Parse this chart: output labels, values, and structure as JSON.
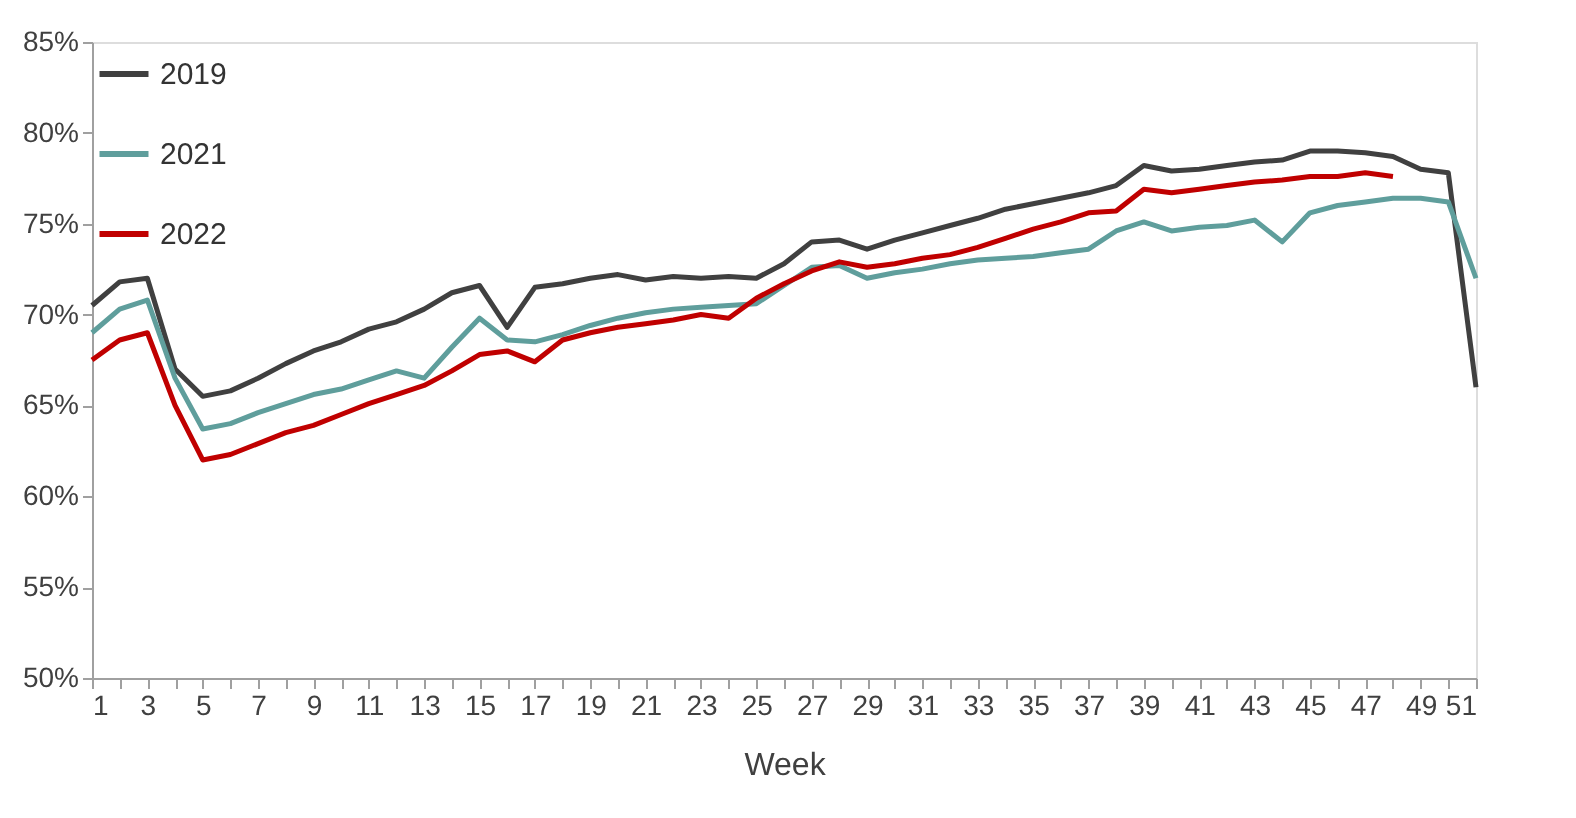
{
  "chart_data": {
    "type": "line",
    "xlabel": "Week",
    "x": [
      1,
      2,
      3,
      4,
      5,
      6,
      7,
      8,
      9,
      10,
      11,
      12,
      13,
      14,
      15,
      16,
      17,
      18,
      19,
      20,
      21,
      22,
      23,
      24,
      25,
      26,
      27,
      28,
      29,
      30,
      31,
      32,
      33,
      34,
      35,
      36,
      37,
      38,
      39,
      40,
      41,
      42,
      43,
      44,
      45,
      46,
      47,
      48,
      49,
      50,
      51
    ],
    "series": [
      {
        "name": "2019",
        "color": "#404040",
        "values": [
          70.5,
          71.8,
          72.0,
          67.0,
          65.5,
          65.8,
          66.5,
          67.3,
          68.0,
          68.5,
          69.2,
          69.6,
          70.3,
          71.2,
          71.6,
          69.3,
          71.5,
          71.7,
          72.0,
          72.2,
          71.9,
          72.1,
          72.0,
          72.1,
          72.0,
          72.8,
          74.0,
          74.1,
          73.6,
          74.1,
          74.5,
          74.9,
          75.3,
          75.8,
          76.1,
          76.4,
          76.7,
          77.1,
          78.2,
          77.9,
          78.0,
          78.2,
          78.4,
          78.5,
          79.0,
          79.0,
          78.9,
          78.7,
          78.0,
          77.8,
          66.0
        ]
      },
      {
        "name": "2021",
        "color": "#5f9e9c",
        "values": [
          69.0,
          70.3,
          70.8,
          66.5,
          63.7,
          64.0,
          64.6,
          65.1,
          65.6,
          65.9,
          66.4,
          66.9,
          66.5,
          68.2,
          69.8,
          68.6,
          68.5,
          68.9,
          69.4,
          69.8,
          70.1,
          70.3,
          70.4,
          70.5,
          70.6,
          71.6,
          72.6,
          72.7,
          72.0,
          72.3,
          72.5,
          72.8,
          73.0,
          73.1,
          73.2,
          73.4,
          73.6,
          74.6,
          75.1,
          74.6,
          74.8,
          74.9,
          75.2,
          74.0,
          75.6,
          76.0,
          76.2,
          76.4,
          76.4,
          76.2,
          72.0
        ]
      },
      {
        "name": "2022",
        "color": "#c00000",
        "values": [
          67.5,
          68.6,
          69.0,
          65.0,
          62.0,
          62.3,
          62.9,
          63.5,
          63.9,
          64.5,
          65.1,
          65.6,
          66.1,
          66.9,
          67.8,
          68.0,
          67.4,
          68.6,
          69.0,
          69.3,
          69.5,
          69.7,
          70.0,
          69.8,
          70.9,
          71.7,
          72.4,
          72.9,
          72.6,
          72.8,
          73.1,
          73.3,
          73.7,
          74.2,
          74.7,
          75.1,
          75.6,
          75.7,
          76.9,
          76.7,
          76.9,
          77.1,
          77.3,
          77.4,
          77.6,
          77.6,
          77.8,
          77.6,
          null,
          null,
          null
        ]
      }
    ],
    "xlim": [
      1,
      51
    ],
    "xticks": [
      1,
      {
        "value": 2,
        "label": null
      },
      3,
      {
        "value": 4,
        "label": null
      },
      5,
      {
        "value": 6,
        "label": null
      },
      7,
      {
        "value": 8,
        "label": null
      },
      9,
      {
        "value": 10,
        "label": null
      },
      11,
      {
        "value": 12,
        "label": null
      },
      13,
      {
        "value": 14,
        "label": null
      },
      15,
      {
        "value": 16,
        "label": null
      },
      17,
      {
        "value": 18,
        "label": null
      },
      19,
      {
        "value": 20,
        "label": null
      },
      21,
      {
        "value": 22,
        "label": null
      },
      23,
      {
        "value": 24,
        "label": null
      },
      25,
      {
        "value": 26,
        "label": null
      },
      27,
      {
        "value": 28,
        "label": null
      },
      29,
      {
        "value": 30,
        "label": null
      },
      31,
      {
        "value": 32,
        "label": null
      },
      33,
      {
        "value": 34,
        "label": null
      },
      35,
      {
        "value": 36,
        "label": null
      },
      37,
      {
        "value": 38,
        "label": null
      },
      39,
      {
        "value": 40,
        "label": null
      },
      41,
      {
        "value": 42,
        "label": null
      },
      43,
      {
        "value": 44,
        "label": null
      },
      45,
      {
        "value": 46,
        "label": null
      },
      47,
      {
        "value": 48,
        "label": null
      },
      49,
      {
        "value": 50,
        "label": null
      },
      51
    ],
    "ylim": [
      50,
      85
    ],
    "yticks": [
      {
        "value": 50,
        "label": "50%"
      },
      {
        "value": 55,
        "label": "55%"
      },
      {
        "value": 60,
        "label": "60%"
      },
      {
        "value": 65,
        "label": "65%"
      },
      {
        "value": 70,
        "label": "70%"
      },
      {
        "value": 75,
        "label": "75%"
      },
      {
        "value": 80,
        "label": "80%"
      },
      {
        "value": 85,
        "label": "85%"
      }
    ],
    "grid": false,
    "legend": "top left",
    "marker": "none",
    "line_style": "solid"
  }
}
